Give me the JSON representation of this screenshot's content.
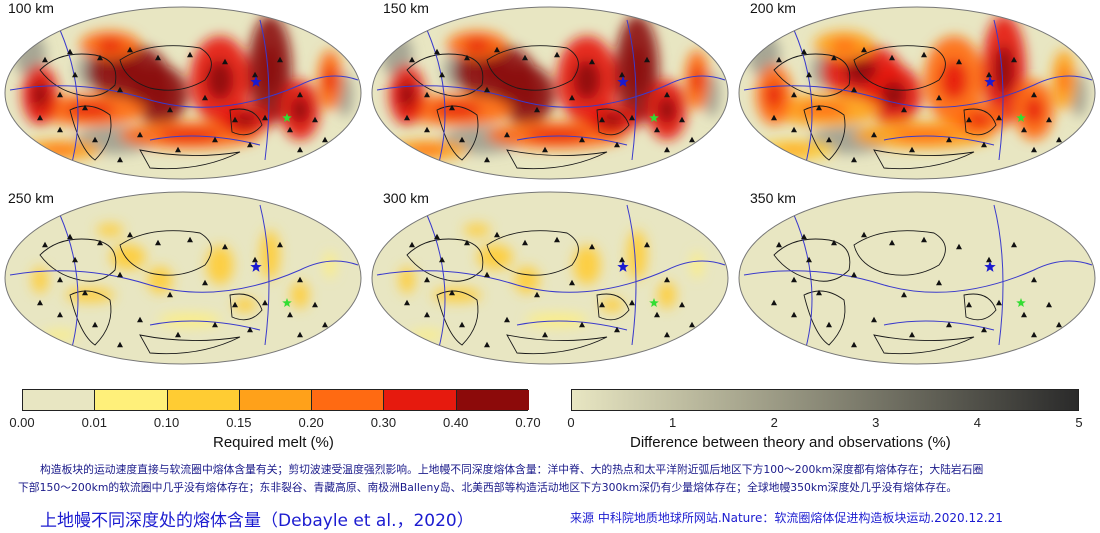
{
  "panels": [
    {
      "depth_label": "100 km",
      "melt_level": 5
    },
    {
      "depth_label": "150 km",
      "melt_level": 5
    },
    {
      "depth_label": "200 km",
      "melt_level": 4
    },
    {
      "depth_label": "250 km",
      "melt_level": 2
    },
    {
      "depth_label": "300 km",
      "melt_level": 2
    },
    {
      "depth_label": "350 km",
      "melt_level": 0
    }
  ],
  "colorbar_melt": {
    "title": "Required melt (%)",
    "ticks": [
      "0.00",
      "0.01",
      "0.10",
      "0.15",
      "0.20",
      "0.30",
      "0.40",
      "0.70"
    ],
    "colors": [
      "#e8e6c2",
      "#fff07a",
      "#ffcc33",
      "#ffa11a",
      "#ff6a12",
      "#e61a0e",
      "#8c0a0a"
    ]
  },
  "colorbar_diff": {
    "title": "Difference between theory and observations (%)",
    "ticks": [
      "0",
      "1",
      "2",
      "3",
      "4",
      "5"
    ],
    "gradient_from": "#e8e6c2",
    "gradient_to": "#2a2a2a"
  },
  "caption": {
    "line1": "构造板块的运动速度直接与软流圈中熔体含量有关；剪切波速受温度强烈影响。上地幔不同深度熔体含量：洋中脊、大的热点和太平洋附近弧后地区下方100～200km深度都有熔体存在；大陆岩石圈",
    "line2": "下部150～200km的软流圈中几乎没有熔体存在；东非裂谷、青藏高原、南极洲Balleny岛、北美西部等构造活动地区下方300km深仍有少量熔体存在；全球地幔350km深度处几乎没有熔体存在。"
  },
  "bottom_title": "上地幔不同深度处的熔体含量（Debayle et al.，2020）",
  "source": "来源  中科院地质地球所网站.Nature：软流圈熔体促进构造板块运动.2020.12.21",
  "colors": {
    "map_background": "#e8e6c2",
    "coastline": "#1a1a1a",
    "plate_boundary": "#3a3acc",
    "star_blue": "#1a1ad0",
    "star_green": "#33dd33",
    "caption_text": "#1a1a8a",
    "title_text": "#1c1cd0"
  }
}
